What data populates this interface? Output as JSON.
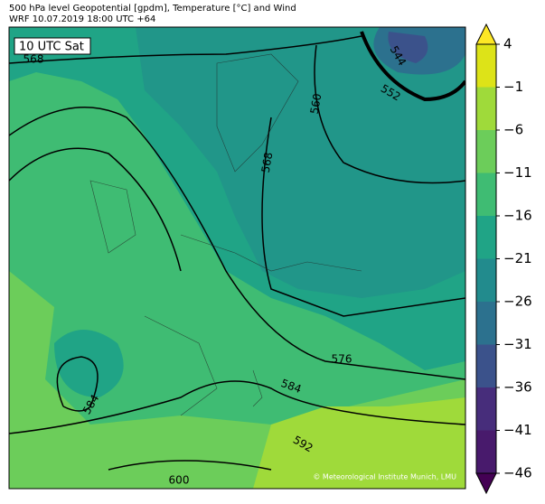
{
  "header": {
    "title": "500 hPa level Geopotential [gpdm], Temperature [°C] and Wind",
    "subtitle": "WRF 10.07.2019 18:00 UTC +64"
  },
  "map": {
    "time_label": "10 UTC Sat",
    "contour_labels": [
      568,
      544,
      552,
      560,
      568,
      576,
      584,
      584,
      592,
      600
    ],
    "credit": "© Meteorological Institute Munich, LMU"
  },
  "colorbar": {
    "ticks": [
      4,
      {
        "value": -1,
        "label": "−1"
      },
      {
        "value": -6,
        "label": "−6"
      },
      {
        "value": -11,
        "label": "−11"
      },
      {
        "value": -16,
        "label": "−16"
      },
      {
        "value": -21,
        "label": "−21"
      },
      {
        "value": -26,
        "label": "−26"
      },
      {
        "value": -31,
        "label": "−31"
      },
      {
        "value": -36,
        "label": "−36"
      },
      {
        "value": -41,
        "label": "−41"
      },
      {
        "value": -46,
        "label": "−46"
      }
    ],
    "colors": [
      "#dde318",
      "#9fda3a",
      "#6ccd5a",
      "#3fbc73",
      "#20a486",
      "#228b8d",
      "#2c718e",
      "#3b528b",
      "#472d7b",
      "#481a6c"
    ],
    "over_color": "#fde725",
    "under_color": "#440154"
  }
}
